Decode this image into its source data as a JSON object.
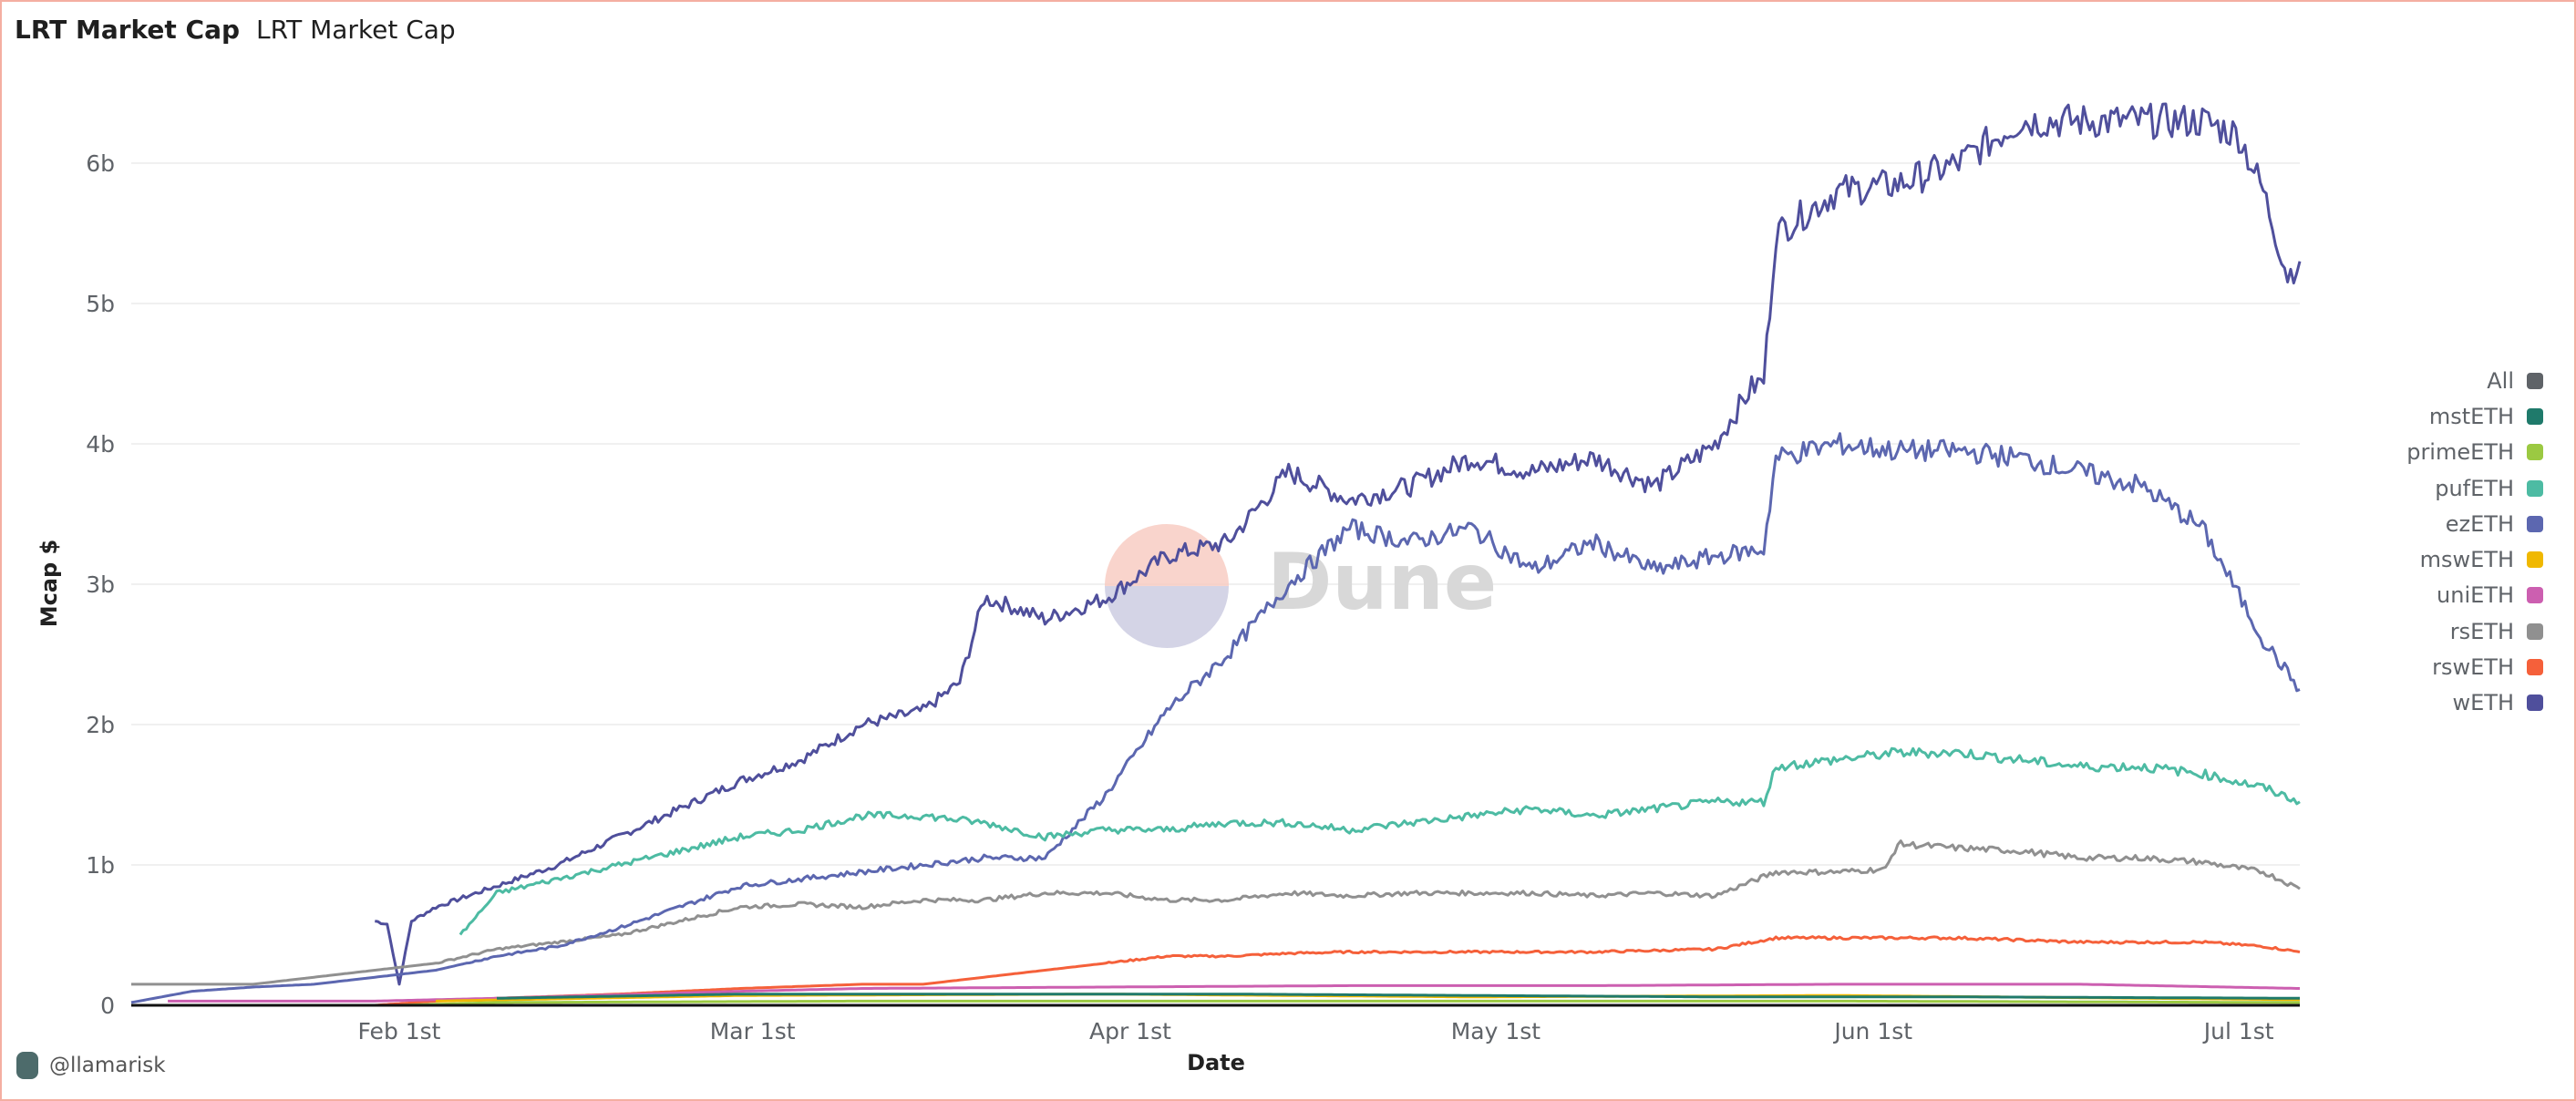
{
  "header": {
    "title": "LRT Market Cap",
    "subtitle": "LRT Market Cap"
  },
  "footer": {
    "author": "@llamarisk"
  },
  "watermark": "Dune",
  "chart_data": {
    "type": "line",
    "title": "LRT Market Cap",
    "xlabel": "Date",
    "ylabel": "Mcap $",
    "x_unit": "days since 2024-01-10",
    "xlim": [
      0,
      178
    ],
    "ylim": [
      0,
      6.6
    ],
    "y_unit": "billion USD",
    "grid": true,
    "legend_position": "right",
    "yticks": [
      {
        "v": 0,
        "label": "0"
      },
      {
        "v": 1,
        "label": "1b"
      },
      {
        "v": 2,
        "label": "2b"
      },
      {
        "v": 3,
        "label": "3b"
      },
      {
        "v": 4,
        "label": "4b"
      },
      {
        "v": 5,
        "label": "5b"
      },
      {
        "v": 6,
        "label": "6b"
      }
    ],
    "xticks": [
      {
        "d": 22,
        "label": "Feb 1st"
      },
      {
        "d": 51,
        "label": "Mar 1st"
      },
      {
        "d": 82,
        "label": "Apr 1st"
      },
      {
        "d": 112,
        "label": "May 1st"
      },
      {
        "d": 143,
        "label": "Jun 1st"
      },
      {
        "d": 173,
        "label": "Jul 1st"
      }
    ],
    "series": [
      {
        "name": "All",
        "color": "#5f6368",
        "points": []
      },
      {
        "name": "mstETH",
        "color": "#1f7a6b",
        "points": [
          [
            30,
            0.05
          ],
          [
            50,
            0.08
          ],
          [
            70,
            0.08
          ],
          [
            90,
            0.08
          ],
          [
            110,
            0.07
          ],
          [
            130,
            0.06
          ],
          [
            150,
            0.06
          ],
          [
            178,
            0.05
          ]
        ]
      },
      {
        "name": "primeETH",
        "color": "#9bc942",
        "points": [
          [
            22,
            0
          ],
          [
            30,
            0.02
          ],
          [
            60,
            0.03
          ],
          [
            100,
            0.03
          ],
          [
            140,
            0.03
          ],
          [
            178,
            0.02
          ]
        ]
      },
      {
        "name": "pufETH",
        "color": "#4dbba3",
        "points": [
          [
            27,
            0.5
          ],
          [
            30,
            0.8
          ],
          [
            35,
            0.9
          ],
          [
            40,
            1.0
          ],
          [
            45,
            1.1
          ],
          [
            50,
            1.2
          ],
          [
            55,
            1.25
          ],
          [
            60,
            1.35
          ],
          [
            65,
            1.35
          ],
          [
            70,
            1.3
          ],
          [
            75,
            1.2
          ],
          [
            80,
            1.25
          ],
          [
            85,
            1.25
          ],
          [
            90,
            1.3
          ],
          [
            95,
            1.3
          ],
          [
            100,
            1.25
          ],
          [
            105,
            1.3
          ],
          [
            110,
            1.35
          ],
          [
            115,
            1.4
          ],
          [
            120,
            1.35
          ],
          [
            125,
            1.4
          ],
          [
            130,
            1.45
          ],
          [
            134,
            1.45
          ],
          [
            135,
            1.7
          ],
          [
            140,
            1.75
          ],
          [
            145,
            1.8
          ],
          [
            150,
            1.8
          ],
          [
            155,
            1.75
          ],
          [
            160,
            1.7
          ],
          [
            165,
            1.7
          ],
          [
            170,
            1.65
          ],
          [
            175,
            1.55
          ],
          [
            178,
            1.45
          ]
        ]
      },
      {
        "name": "ezETH",
        "color": "#5c67b0",
        "points": [
          [
            0,
            0.02
          ],
          [
            5,
            0.1
          ],
          [
            10,
            0.13
          ],
          [
            15,
            0.15
          ],
          [
            20,
            0.2
          ],
          [
            25,
            0.25
          ],
          [
            30,
            0.35
          ],
          [
            35,
            0.42
          ],
          [
            40,
            0.55
          ],
          [
            45,
            0.7
          ],
          [
            50,
            0.85
          ],
          [
            55,
            0.9
          ],
          [
            60,
            0.95
          ],
          [
            65,
            1.0
          ],
          [
            70,
            1.05
          ],
          [
            75,
            1.05
          ],
          [
            80,
            1.5
          ],
          [
            85,
            2.1
          ],
          [
            90,
            2.5
          ],
          [
            95,
            3.0
          ],
          [
            100,
            3.4
          ],
          [
            105,
            3.3
          ],
          [
            110,
            3.4
          ],
          [
            115,
            3.1
          ],
          [
            120,
            3.3
          ],
          [
            125,
            3.1
          ],
          [
            130,
            3.2
          ],
          [
            134,
            3.25
          ],
          [
            135,
            3.9
          ],
          [
            140,
            4.0
          ],
          [
            145,
            3.95
          ],
          [
            150,
            3.95
          ],
          [
            155,
            3.9
          ],
          [
            160,
            3.8
          ],
          [
            165,
            3.7
          ],
          [
            170,
            3.4
          ],
          [
            175,
            2.6
          ],
          [
            178,
            2.25
          ]
        ]
      },
      {
        "name": "mswETH",
        "color": "#f0b800",
        "points": [
          [
            25,
            0.03
          ],
          [
            50,
            0.07
          ],
          [
            80,
            0.08
          ],
          [
            110,
            0.06
          ],
          [
            140,
            0.07
          ],
          [
            178,
            0.04
          ]
        ]
      },
      {
        "name": "uniETH",
        "color": "#cc5fb0",
        "points": [
          [
            3,
            0.03
          ],
          [
            20,
            0.03
          ],
          [
            30,
            0.05
          ],
          [
            50,
            0.1
          ],
          [
            60,
            0.12
          ],
          [
            80,
            0.13
          ],
          [
            100,
            0.14
          ],
          [
            120,
            0.14
          ],
          [
            140,
            0.15
          ],
          [
            160,
            0.15
          ],
          [
            178,
            0.12
          ]
        ]
      },
      {
        "name": "rsETH",
        "color": "#909090",
        "points": [
          [
            0,
            0.15
          ],
          [
            5,
            0.15
          ],
          [
            10,
            0.15
          ],
          [
            15,
            0.2
          ],
          [
            20,
            0.25
          ],
          [
            25,
            0.3
          ],
          [
            30,
            0.4
          ],
          [
            35,
            0.45
          ],
          [
            40,
            0.5
          ],
          [
            45,
            0.6
          ],
          [
            50,
            0.7
          ],
          [
            55,
            0.72
          ],
          [
            60,
            0.7
          ],
          [
            65,
            0.75
          ],
          [
            70,
            0.75
          ],
          [
            75,
            0.8
          ],
          [
            80,
            0.8
          ],
          [
            85,
            0.75
          ],
          [
            90,
            0.75
          ],
          [
            95,
            0.8
          ],
          [
            100,
            0.78
          ],
          [
            105,
            0.8
          ],
          [
            110,
            0.8
          ],
          [
            115,
            0.8
          ],
          [
            120,
            0.78
          ],
          [
            125,
            0.8
          ],
          [
            130,
            0.78
          ],
          [
            135,
            0.95
          ],
          [
            140,
            0.95
          ],
          [
            144,
            0.97
          ],
          [
            145,
            1.15
          ],
          [
            150,
            1.12
          ],
          [
            155,
            1.1
          ],
          [
            160,
            1.05
          ],
          [
            165,
            1.05
          ],
          [
            170,
            1.02
          ],
          [
            175,
            0.95
          ],
          [
            178,
            0.83
          ]
        ]
      },
      {
        "name": "rswETH",
        "color": "#f5603a",
        "points": [
          [
            20,
            0
          ],
          [
            25,
            0.03
          ],
          [
            30,
            0.05
          ],
          [
            40,
            0.08
          ],
          [
            50,
            0.12
          ],
          [
            60,
            0.15
          ],
          [
            65,
            0.15
          ],
          [
            70,
            0.2
          ],
          [
            75,
            0.25
          ],
          [
            80,
            0.3
          ],
          [
            85,
            0.35
          ],
          [
            90,
            0.35
          ],
          [
            95,
            0.37
          ],
          [
            100,
            0.38
          ],
          [
            110,
            0.38
          ],
          [
            120,
            0.38
          ],
          [
            130,
            0.4
          ],
          [
            135,
            0.48
          ],
          [
            140,
            0.48
          ],
          [
            150,
            0.48
          ],
          [
            160,
            0.45
          ],
          [
            170,
            0.45
          ],
          [
            175,
            0.42
          ],
          [
            178,
            0.38
          ]
        ]
      },
      {
        "name": "wETH",
        "color": "#4f4f9c",
        "points": [
          [
            20,
            0.6
          ],
          [
            21,
            0.58
          ],
          [
            22,
            0.15
          ],
          [
            23,
            0.6
          ],
          [
            25,
            0.7
          ],
          [
            30,
            0.85
          ],
          [
            35,
            1.0
          ],
          [
            40,
            1.2
          ],
          [
            45,
            1.4
          ],
          [
            50,
            1.6
          ],
          [
            55,
            1.75
          ],
          [
            60,
            2.0
          ],
          [
            65,
            2.1
          ],
          [
            68,
            2.3
          ],
          [
            70,
            2.9
          ],
          [
            72,
            2.85
          ],
          [
            75,
            2.75
          ],
          [
            80,
            2.9
          ],
          [
            85,
            3.2
          ],
          [
            90,
            3.3
          ],
          [
            95,
            3.8
          ],
          [
            100,
            3.6
          ],
          [
            105,
            3.7
          ],
          [
            110,
            3.9
          ],
          [
            115,
            3.8
          ],
          [
            120,
            3.9
          ],
          [
            125,
            3.7
          ],
          [
            130,
            4.0
          ],
          [
            133,
            4.4
          ],
          [
            134,
            4.45
          ],
          [
            135,
            5.5
          ],
          [
            140,
            5.8
          ],
          [
            145,
            5.85
          ],
          [
            150,
            6.0
          ],
          [
            155,
            6.3
          ],
          [
            160,
            6.3
          ],
          [
            165,
            6.3
          ],
          [
            170,
            6.3
          ],
          [
            173,
            6.2
          ],
          [
            175,
            5.8
          ],
          [
            177,
            5.2
          ],
          [
            178,
            5.3
          ]
        ]
      }
    ]
  }
}
